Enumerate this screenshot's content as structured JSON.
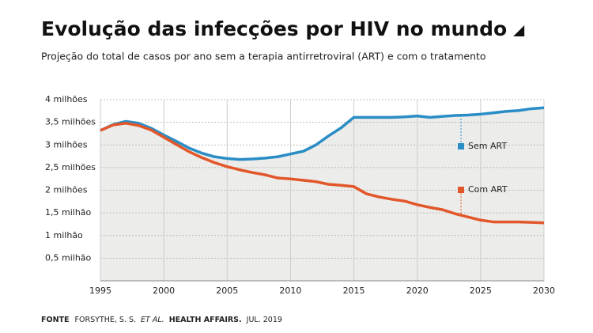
{
  "chart_data": {
    "type": "line",
    "title": "Evolução das infecções por HIV no mundo",
    "subtitle": "Projeção do total de casos por ano sem a terapia antirretroviral (ART) e com o tratamento",
    "source": [
      "FONTE",
      "FORSYTHE, S. S.",
      "ET AL.",
      "HEALTH AFFAIRS.",
      "JUL. 2019"
    ],
    "x": [
      1995,
      1996,
      1997,
      1998,
      1999,
      2000,
      2001,
      2002,
      2003,
      2004,
      2005,
      2006,
      2007,
      2008,
      2009,
      2010,
      2011,
      2012,
      2013,
      2014,
      2015,
      2016,
      2017,
      2018,
      2019,
      2020,
      2021,
      2022,
      2023,
      2024,
      2025,
      2026,
      2027,
      2028,
      2029,
      2030
    ],
    "series": [
      {
        "name": "Sem ART",
        "color": "#2a8dc5",
        "values": [
          3.32,
          3.45,
          3.52,
          3.48,
          3.37,
          3.22,
          3.08,
          2.93,
          2.82,
          2.74,
          2.7,
          2.68,
          2.69,
          2.71,
          2.74,
          2.8,
          2.86,
          3.0,
          3.2,
          3.38,
          3.61,
          3.61,
          3.61,
          3.61,
          3.62,
          3.64,
          3.61,
          3.63,
          3.65,
          3.66,
          3.68,
          3.71,
          3.74,
          3.76,
          3.8,
          3.82
        ]
      },
      {
        "name": "Com ART",
        "color": "#e2572a",
        "values": [
          3.32,
          3.44,
          3.48,
          3.43,
          3.33,
          3.17,
          3.01,
          2.85,
          2.72,
          2.61,
          2.52,
          2.45,
          2.39,
          2.34,
          2.27,
          2.25,
          2.22,
          2.19,
          2.13,
          2.11,
          2.08,
          1.92,
          1.85,
          1.8,
          1.76,
          1.68,
          1.62,
          1.57,
          1.48,
          1.41,
          1.34,
          1.3,
          1.3,
          1.3,
          1.29,
          1.28
        ]
      }
    ],
    "xlim": [
      1995,
      2030
    ],
    "xticks": [
      1995,
      2000,
      2005,
      2010,
      2015,
      2020,
      2025,
      2030
    ],
    "ylim": [
      0,
      4
    ],
    "yticks": [
      {
        "value": 0.5,
        "label": "0,5 milhão"
      },
      {
        "value": 1,
        "label": "1 milhão"
      },
      {
        "value": 1.5,
        "label": "1,5 milhão"
      },
      {
        "value": 2,
        "label": "2 milhões"
      },
      {
        "value": 2.5,
        "label": "2,5 milhões"
      },
      {
        "value": 3,
        "label": "3 milhões"
      },
      {
        "value": 3.5,
        "label": "3,5 milhões"
      },
      {
        "value": 4,
        "label": "4 milhões"
      }
    ],
    "grid": true
  }
}
